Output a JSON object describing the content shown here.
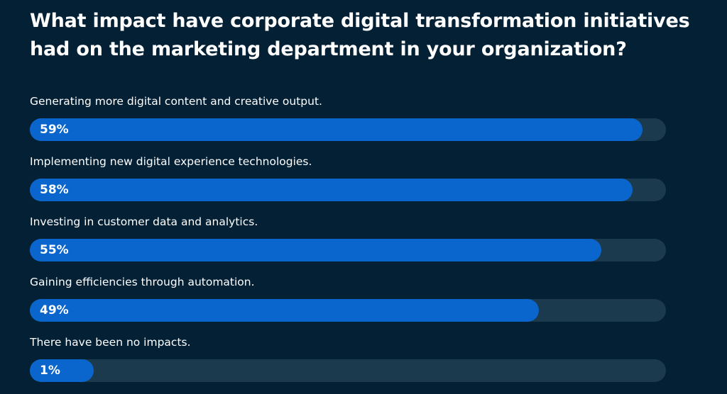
{
  "chart_data": {
    "type": "bar",
    "orientation": "horizontal",
    "title": "What impact have corporate digital transformation initiatives had on the marketing department in your organization?",
    "categories": [
      "Generating more digital content and creative output.",
      "Implementing new digital experience technologies.",
      "Investing in customer data and analytics.",
      "Gaining efficiencies through automation.",
      "There have been no impacts."
    ],
    "values": [
      59,
      58,
      55,
      49,
      1
    ],
    "value_labels": [
      "59%",
      "58%",
      "55%",
      "49%",
      "1%"
    ],
    "unit": "%",
    "xlim": [
      0,
      60
    ],
    "grid": false,
    "legend": "none"
  },
  "colors": {
    "background": "#042035",
    "bar": "#0a66cc",
    "track": "#1c3a4e",
    "text": "#ffffff"
  }
}
